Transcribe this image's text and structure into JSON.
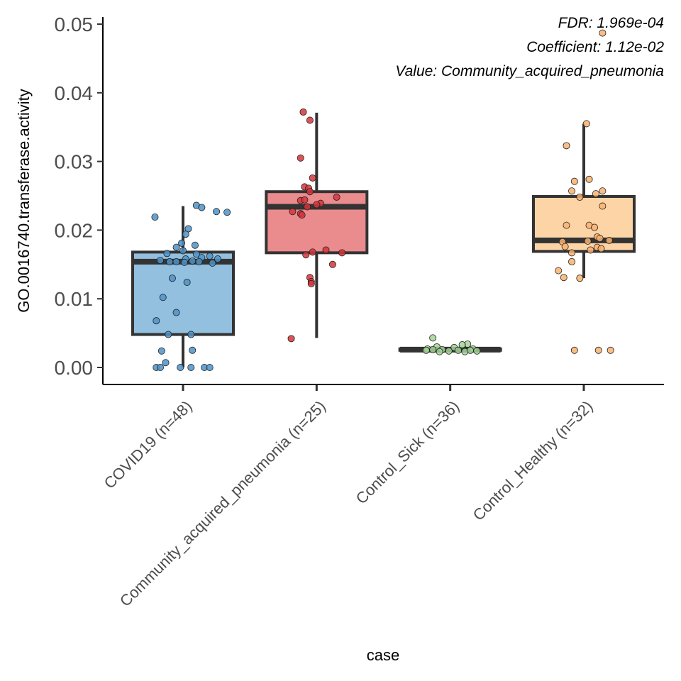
{
  "chart_data": {
    "type": "box",
    "xlabel": "case",
    "ylabel": "GO.0016740.transferase.activity",
    "ylim": [
      -0.0025,
      0.051
    ],
    "yticks": [
      "0.00",
      "0.01",
      "0.02",
      "0.03",
      "0.04",
      "0.05"
    ],
    "ytick_values": [
      0,
      0.01,
      0.02,
      0.03,
      0.04,
      0.05
    ],
    "grid": false,
    "annotations": [
      "FDR: 1.969e-04",
      "Coefficient: 1.12e-02",
      "Value: Community_acquired_pneumonia"
    ],
    "categories": [
      "COVID19 (n=48)",
      "Community_acquired_pneumonia (n=25)",
      "Control_Sick (n=36)",
      "Control_Healthy (n=32)"
    ],
    "boxes": [
      {
        "category": "COVID19 (n=48)",
        "fill": "#92c0de",
        "point": "#4d93c8",
        "whisker_low": 0.0,
        "q1": 0.0048,
        "median": 0.0154,
        "q3": 0.0168,
        "whisker_high": 0.0235
      },
      {
        "category": "Community_acquired_pneumonia (n=25)",
        "fill": "#ea8b8e",
        "point": "#d6353a",
        "whisker_low": 0.0043,
        "q1": 0.0167,
        "median": 0.0234,
        "q3": 0.0256,
        "whisker_high": 0.0371
      },
      {
        "category": "Control_Sick (n=36)",
        "fill": "#b8dfae",
        "point": "#a3d497",
        "whisker_low": 0.0024,
        "q1": 0.0025,
        "median": 0.0026,
        "q3": 0.0027,
        "whisker_high": 0.0029
      },
      {
        "category": "Control_Healthy (n=32)",
        "fill": "#fdd4a6",
        "point": "#f9b16e",
        "whisker_low": 0.013,
        "q1": 0.0169,
        "median": 0.0185,
        "q3": 0.0249,
        "whisker_high": 0.0355
      }
    ],
    "points": [
      {
        "category": "COVID19 (n=48)",
        "values": [
          {
            "x": 0.1,
            "y": 0.0236
          },
          {
            "x": 0.14,
            "y": 0.0233
          },
          {
            "x": 0.25,
            "y": 0.0227
          },
          {
            "x": 0.33,
            "y": 0.0226
          },
          {
            "x": -0.21,
            "y": 0.0219
          },
          {
            "x": 0.04,
            "y": 0.0202
          },
          {
            "x": 0.02,
            "y": 0.0194
          },
          {
            "x": -0.01,
            "y": 0.0181
          },
          {
            "x": -0.05,
            "y": 0.0175
          },
          {
            "x": 0.09,
            "y": 0.0178
          },
          {
            "x": 0.0,
            "y": 0.017
          },
          {
            "x": -0.12,
            "y": 0.0166
          },
          {
            "x": 0.1,
            "y": 0.0165
          },
          {
            "x": 0.2,
            "y": 0.0162
          },
          {
            "x": 0.14,
            "y": 0.016
          },
          {
            "x": 0.26,
            "y": 0.0158
          },
          {
            "x": 0.02,
            "y": 0.0158
          },
          {
            "x": -0.17,
            "y": 0.0156
          },
          {
            "x": 0.22,
            "y": 0.0152
          },
          {
            "x": 0.07,
            "y": 0.0155
          },
          {
            "x": 0.01,
            "y": 0.0153
          },
          {
            "x": -0.1,
            "y": 0.0154
          },
          {
            "x": -0.05,
            "y": 0.0154
          },
          {
            "x": 0.12,
            "y": 0.0154
          },
          {
            "x": 0.03,
            "y": 0.0124
          },
          {
            "x": -0.08,
            "y": 0.013
          },
          {
            "x": -0.15,
            "y": 0.0102
          },
          {
            "x": -0.05,
            "y": 0.008
          },
          {
            "x": -0.2,
            "y": 0.0068
          },
          {
            "x": -0.11,
            "y": 0.0048
          },
          {
            "x": 0.06,
            "y": 0.0048
          },
          {
            "x": -0.16,
            "y": 0.0024
          },
          {
            "x": 0.07,
            "y": 0.0025
          },
          {
            "x": -0.13,
            "y": 0.0007
          },
          {
            "x": -0.2,
            "y": 0.0
          },
          {
            "x": -0.17,
            "y": 0.0
          },
          {
            "x": 0.06,
            "y": 0.0
          },
          {
            "x": 0.16,
            "y": 0.0
          },
          {
            "x": 0.2,
            "y": 0.0
          },
          {
            "x": -0.02,
            "y": 0.0
          }
        ]
      },
      {
        "category": "Community_acquired_pneumonia (n=25)",
        "values": [
          {
            "x": -0.1,
            "y": 0.0372
          },
          {
            "x": -0.05,
            "y": 0.036
          },
          {
            "x": -0.12,
            "y": 0.0305
          },
          {
            "x": -0.03,
            "y": 0.0276
          },
          {
            "x": -0.09,
            "y": 0.0263
          },
          {
            "x": -0.06,
            "y": 0.0261
          },
          {
            "x": -0.05,
            "y": 0.0256
          },
          {
            "x": 0.15,
            "y": 0.0248
          },
          {
            "x": -0.12,
            "y": 0.0243
          },
          {
            "x": -0.09,
            "y": 0.0244
          },
          {
            "x": 0.03,
            "y": 0.0239
          },
          {
            "x": 0.0,
            "y": 0.0237
          },
          {
            "x": -0.07,
            "y": 0.0234
          },
          {
            "x": -0.18,
            "y": 0.0227
          },
          {
            "x": -0.12,
            "y": 0.0224
          },
          {
            "x": -0.11,
            "y": 0.0222
          },
          {
            "x": -0.03,
            "y": 0.0168
          },
          {
            "x": 0.07,
            "y": 0.0171
          },
          {
            "x": 0.19,
            "y": 0.0167
          },
          {
            "x": -0.08,
            "y": 0.0164
          },
          {
            "x": 0.12,
            "y": 0.015
          },
          {
            "x": -0.05,
            "y": 0.0131
          },
          {
            "x": -0.04,
            "y": 0.0125
          },
          {
            "x": -0.04,
            "y": 0.0122
          },
          {
            "x": -0.19,
            "y": 0.0042
          }
        ]
      },
      {
        "category": "Control_Sick (n=36)",
        "values": [
          {
            "x": -0.13,
            "y": 0.0043
          },
          {
            "x": 0.13,
            "y": 0.0034
          },
          {
            "x": 0.09,
            "y": 0.0033
          },
          {
            "x": -0.1,
            "y": 0.003
          },
          {
            "x": 0.03,
            "y": 0.0029
          },
          {
            "x": -0.17,
            "y": 0.0027
          },
          {
            "x": 0.17,
            "y": 0.0027
          },
          {
            "x": -0.06,
            "y": 0.0026
          },
          {
            "x": 0.06,
            "y": 0.0025
          },
          {
            "x": -0.01,
            "y": 0.0024
          },
          {
            "x": -0.18,
            "y": 0.0025
          },
          {
            "x": 0.2,
            "y": 0.0024
          },
          {
            "x": -0.08,
            "y": 0.0023
          },
          {
            "x": 0.11,
            "y": 0.0023
          },
          {
            "x": -0.13,
            "y": 0.0026
          },
          {
            "x": 0.15,
            "y": 0.0025
          }
        ]
      },
      {
        "category": "Control_Healthy (n=32)",
        "values": [
          {
            "x": 0.14,
            "y": 0.0487
          },
          {
            "x": 0.02,
            "y": 0.0355
          },
          {
            "x": -0.13,
            "y": 0.0323
          },
          {
            "x": 0.04,
            "y": 0.0274
          },
          {
            "x": -0.07,
            "y": 0.0271
          },
          {
            "x": 0.14,
            "y": 0.0257
          },
          {
            "x": -0.09,
            "y": 0.0257
          },
          {
            "x": 0.09,
            "y": 0.0253
          },
          {
            "x": -0.03,
            "y": 0.0248
          },
          {
            "x": 0.14,
            "y": 0.0235
          },
          {
            "x": 0.04,
            "y": 0.0207
          },
          {
            "x": 0.08,
            "y": 0.0204
          },
          {
            "x": -0.13,
            "y": 0.0207
          },
          {
            "x": 0.1,
            "y": 0.019
          },
          {
            "x": 0.12,
            "y": 0.0188
          },
          {
            "x": 0.19,
            "y": 0.0185
          },
          {
            "x": -0.16,
            "y": 0.0183
          },
          {
            "x": 0.03,
            "y": 0.0184
          },
          {
            "x": -0.14,
            "y": 0.0176
          },
          {
            "x": 0.1,
            "y": 0.0175
          },
          {
            "x": 0.13,
            "y": 0.0173
          },
          {
            "x": 0.05,
            "y": 0.0171
          },
          {
            "x": -0.09,
            "y": 0.0167
          },
          {
            "x": -0.09,
            "y": 0.0154
          },
          {
            "x": -0.19,
            "y": 0.0141
          },
          {
            "x": -0.15,
            "y": 0.0131
          },
          {
            "x": -0.03,
            "y": 0.013
          },
          {
            "x": -0.07,
            "y": 0.0025
          },
          {
            "x": 0.11,
            "y": 0.0025
          },
          {
            "x": 0.2,
            "y": 0.0025
          }
        ]
      }
    ]
  }
}
